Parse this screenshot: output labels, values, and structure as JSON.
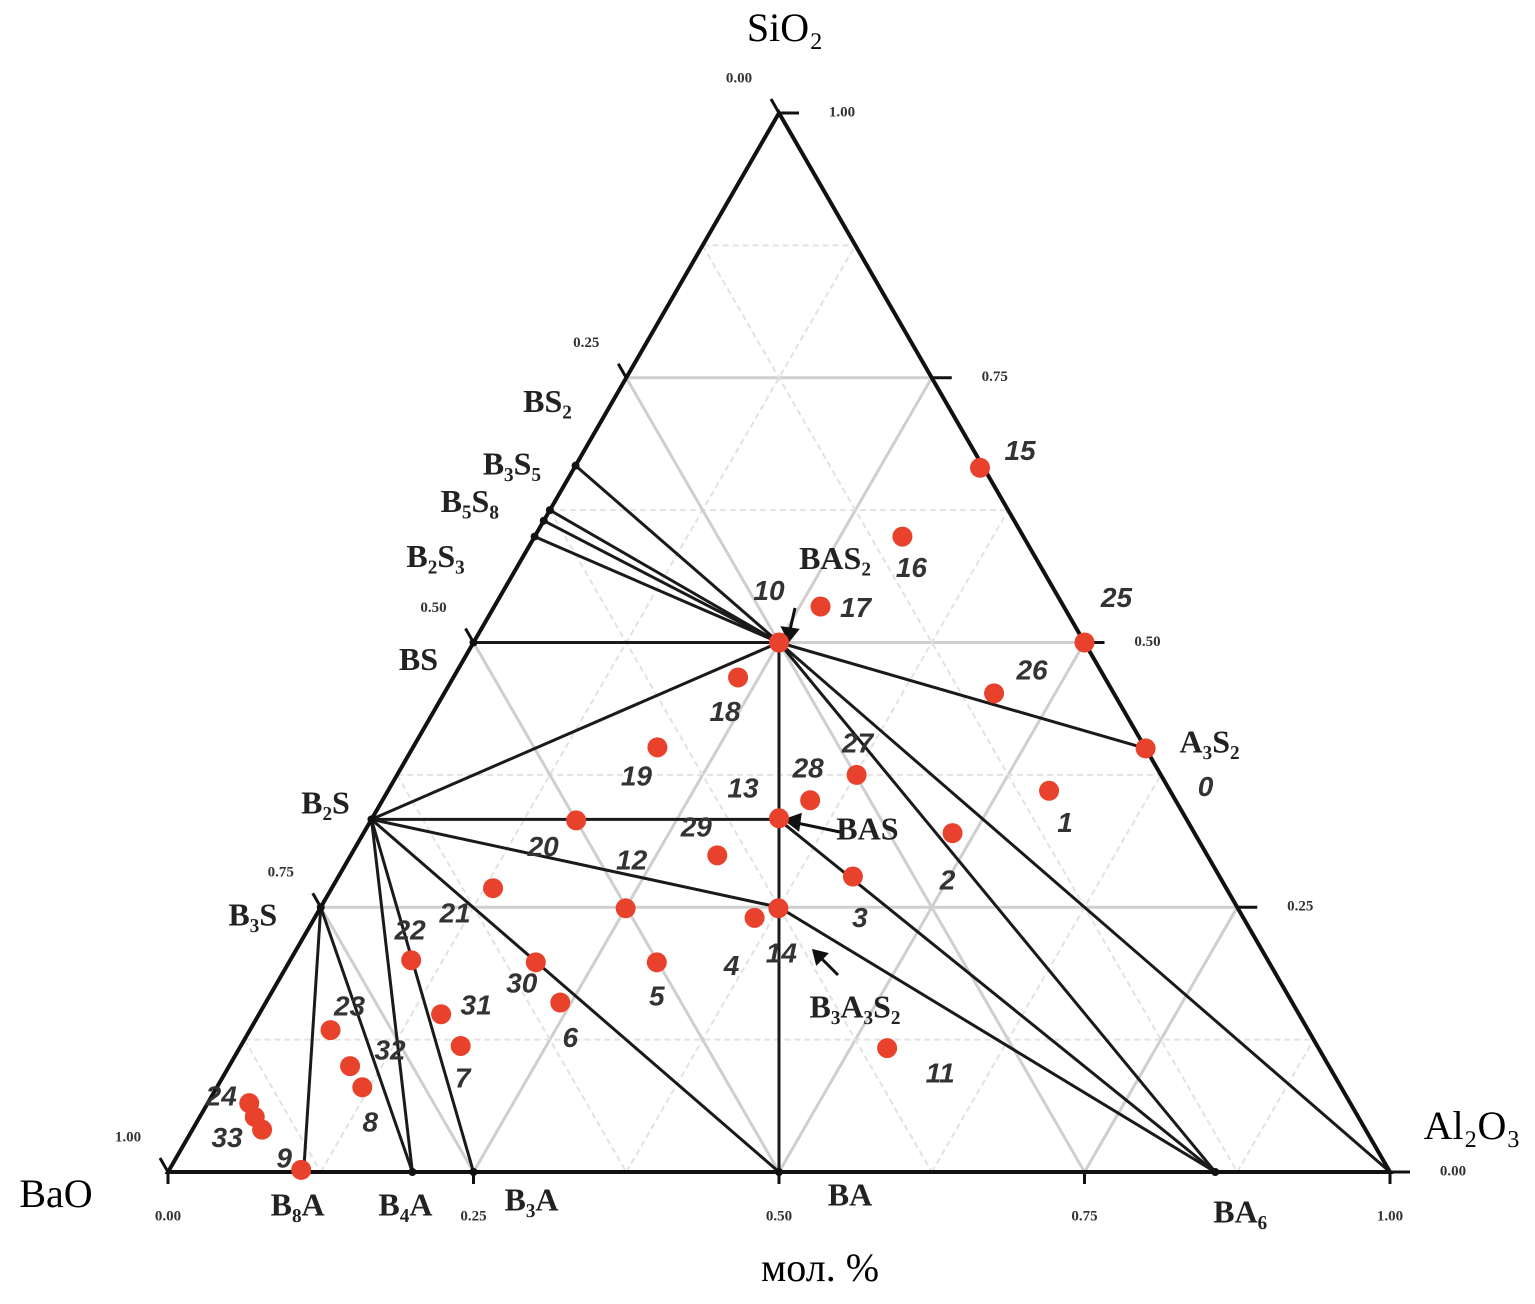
{
  "chart_data": {
    "type": "ternary",
    "vertices": {
      "top": "SiO₂",
      "right": "Al₂O₃",
      "left": "BaO"
    },
    "axis_label": "мол. %",
    "bottom_ticks": [
      {
        "value": 0,
        "label": "0.00"
      },
      {
        "value": 0.25,
        "label": "0.25"
      },
      {
        "value": 0.5,
        "label": "0.50"
      },
      {
        "value": 0.75,
        "label": "0.75"
      },
      {
        "value": 1,
        "label": "1.00"
      }
    ],
    "right_ticks": [
      {
        "value": 0,
        "label": "0.00"
      },
      {
        "value": 0.25,
        "label": "0.25"
      },
      {
        "value": 0.5,
        "label": "0.50"
      },
      {
        "value": 0.75,
        "label": "0.75"
      },
      {
        "value": 1,
        "label": "1.00"
      }
    ],
    "left_ticks": [
      {
        "value": 0,
        "label": "0.00"
      },
      {
        "value": 0.25,
        "label": "0.25"
      },
      {
        "value": 0.5,
        "label": "0.50"
      },
      {
        "value": 0.75,
        "label": "0.75"
      },
      {
        "value": 1,
        "label": "1.00"
      }
    ],
    "compounds": {
      "labels": [
        "BS₂",
        "B₃S₅",
        "B₅S₈",
        "B₂S₃",
        "BS",
        "B₂S",
        "B₃S",
        "B₈A",
        "B₄A",
        "B₃A",
        "BA",
        "BA₆",
        "A₃S₂",
        "BAS₂",
        "BAS",
        "B₃A₃S₂"
      ],
      "al2o3": [
        0,
        0,
        0,
        0,
        0,
        0,
        0,
        0.111,
        0.2,
        0.25,
        0.5,
        0.857,
        0.6,
        0.25,
        0.333,
        0.375
      ],
      "sio2": [
        0.667,
        0.625,
        0.615,
        0.6,
        0.5,
        0.333,
        0.25,
        0,
        0,
        0,
        0,
        0,
        0.4,
        0.5,
        0.333,
        0.25
      ]
    },
    "points": {
      "color": "#e8412c",
      "labels": [
        "15",
        "16",
        "17",
        "10",
        "18",
        "19",
        "13",
        "28",
        "27",
        "29",
        "20",
        "12",
        "21",
        "3",
        "2",
        "1",
        "0",
        "25",
        "26",
        "4",
        "14",
        "5",
        "30",
        "6",
        "22",
        "31",
        "7",
        "11",
        "23",
        "32",
        "8",
        "24",
        null,
        "33",
        "9"
      ],
      "al2o3": [
        0.332,
        0.301,
        0.267,
        0.25,
        0.233,
        0.2,
        0.333,
        0.35,
        0.376,
        0.3,
        0.168,
        0.25,
        0.132,
        0.421,
        0.482,
        0.541,
        0.6,
        0.5,
        0.45,
        0.36,
        0.375,
        0.301,
        0.202,
        0.241,
        0.099,
        0.149,
        0.18,
        0.53,
        0.066,
        0.099,
        0.119,
        0.034,
        0.045,
        0.057,
        0.108
      ],
      "sio2": [
        0.665,
        0.6,
        0.534,
        0.5,
        0.467,
        0.401,
        0.334,
        0.351,
        0.375,
        0.299,
        0.332,
        0.249,
        0.268,
        0.279,
        0.32,
        0.36,
        0.4,
        0.5,
        0.452,
        0.24,
        0.249,
        0.198,
        0.198,
        0.16,
        0.2,
        0.149,
        0.119,
        0.117,
        0.134,
        0.1,
        0.08,
        0.065,
        0.052,
        0.04,
        0.002
      ]
    }
  }
}
